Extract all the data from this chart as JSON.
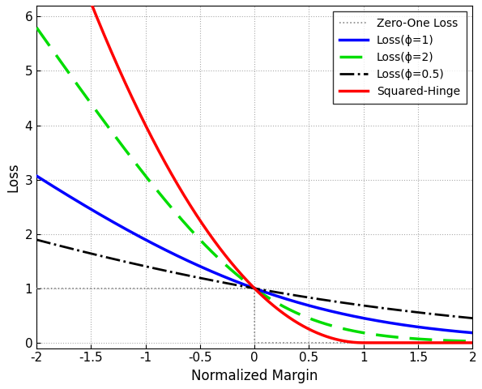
{
  "xlim": [
    -2,
    2
  ],
  "ylim": [
    -0.1,
    6.2
  ],
  "xlabel": "Normalized Margin",
  "ylabel": "Loss",
  "yticks": [
    0,
    1,
    2,
    3,
    4,
    5,
    6
  ],
  "xticks": [
    -2,
    -1.5,
    -1,
    -0.5,
    0,
    0.5,
    1,
    1.5,
    2
  ],
  "legend_entries": [
    {
      "label": "Zero-One Loss",
      "color": "#888888",
      "linestyle": "dotted",
      "linewidth": 1.5
    },
    {
      "label": "Loss(ϕ=1)",
      "color": "#0000ff",
      "linestyle": "solid",
      "linewidth": 2.5
    },
    {
      "label": "Loss(ϕ=2)",
      "color": "#00dd00",
      "linestyle": "dashed",
      "linewidth": 2.5
    },
    {
      "label": "Loss(ϕ=0.5)",
      "color": "#000000",
      "linestyle": "dashdot",
      "linewidth": 2.0
    },
    {
      "label": "Squared-Hinge",
      "color": "#ff0000",
      "linestyle": "solid",
      "linewidth": 2.5
    }
  ],
  "phi_values": [
    1,
    2,
    0.5
  ],
  "background_color": "#ffffff",
  "grid_color": "#aaaaaa",
  "grid_linestyle": "dotted"
}
